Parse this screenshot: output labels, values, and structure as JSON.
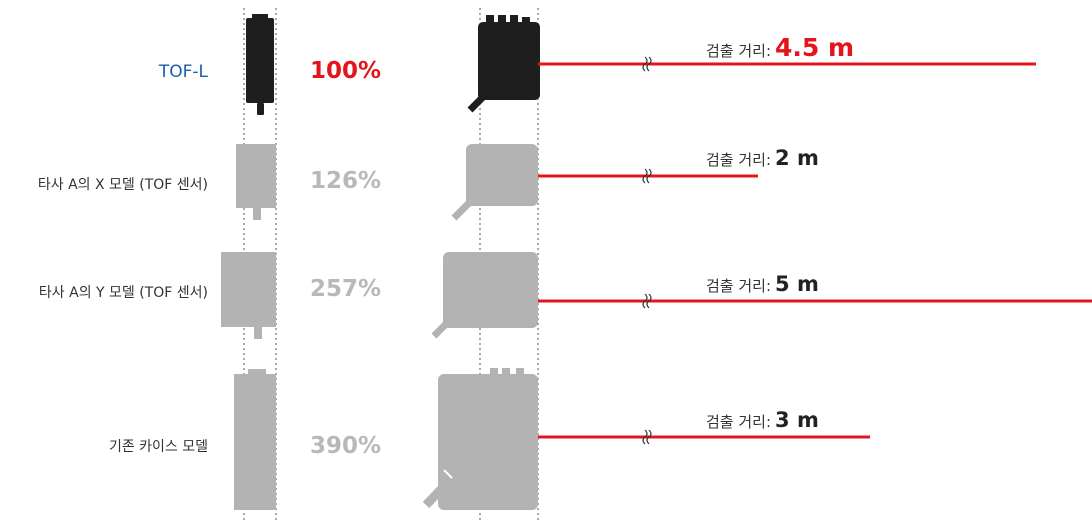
{
  "colors": {
    "accent_red": "#e4141d",
    "accent_blue": "#1a5ea8",
    "tofl_body": "#1e1e1e",
    "other_body": "#b3b3b3"
  },
  "rows": [
    {
      "name": "TOF-L",
      "percent": "100%",
      "distance_label": "검출 거리:",
      "distance_value": "4.5 m",
      "highlight": true
    },
    {
      "name": "타사 A의 X 모델 (TOF 센서)",
      "percent": "126%",
      "distance_label": "검출 거리:",
      "distance_value": "2 m",
      "highlight": false
    },
    {
      "name": "타사 A의 Y 모델 (TOF 센서)",
      "percent": "257%",
      "distance_label": "검출 거리:",
      "distance_value": "5 m",
      "highlight": false
    },
    {
      "name": "기존 카이스 모델",
      "percent": "390%",
      "distance_label": "검출 거리:",
      "distance_value": "3 m",
      "highlight": false
    }
  ]
}
